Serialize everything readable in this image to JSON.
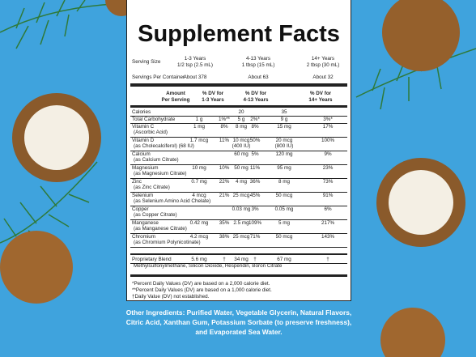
{
  "title": "Supplement Facts",
  "serving": {
    "label": "Serving Size",
    "columns": [
      {
        "age": "1-3 Years",
        "size": "1/2 tsp (2.5 mL)"
      },
      {
        "age": "4-13 Years",
        "size": "1 tbsp (15 mL)"
      },
      {
        "age": "14+ Years",
        "size": "2 tbsp (30 mL)"
      }
    ]
  },
  "servings_per_container": {
    "label": "Servings Per Container",
    "values": [
      "About 378",
      "About 63",
      "About 32"
    ]
  },
  "header": [
    "Amount\nPer Serving",
    "% DV for\n1-3 Years",
    "% DV for\n4-13 Years",
    "% DV for\n14+ Years"
  ],
  "rows": [
    {
      "name": "Calories",
      "cells": [
        null,
        null,
        "20",
        null,
        "35",
        null
      ]
    },
    {
      "name": "Total Carbohydrate",
      "cells": [
        "1 g",
        "1%**",
        "5 g",
        "2%*",
        "9 g",
        "3%*"
      ]
    },
    {
      "name": "Vitamin C",
      "sub": "(Ascorbic Acid)",
      "cells": [
        "1 mg",
        "8%",
        "8 mg",
        "8%",
        "15 mg",
        "17%"
      ]
    },
    {
      "name": "Vitamin D",
      "sub": "(as Cholecalciferol) (68 IU)",
      "cells": [
        "1.7 mcg",
        "11%",
        "10 mcg\n(400 IU)",
        "50%",
        "20 mcg\n(800 IU)",
        "100%"
      ]
    },
    {
      "name": "Calcium",
      "sub": "(as Calcium Citrate)",
      "cells": [
        null,
        null,
        "60 mg",
        "5%",
        "120 mg",
        "9%"
      ]
    },
    {
      "name": "Magnesium",
      "sub": "(as Magnesium Citrate)",
      "cells": [
        "10 mg",
        "10%",
        "50 mg",
        "11%",
        "95 mg",
        "23%"
      ]
    },
    {
      "name": "Zinc",
      "sub": "(as Zinc Citrate)",
      "cells": [
        "0.7 mg",
        "22%",
        "4 mg",
        "36%",
        "8 mg",
        "73%"
      ]
    },
    {
      "name": "Selenium",
      "sub": "(as Selenium Amino Acid Chelate)",
      "cells": [
        "4 mcg",
        "21%",
        "25 mcg",
        "45%",
        "50 mcg",
        "91%"
      ]
    },
    {
      "name": "Copper",
      "sub": "(as Copper Citrate)",
      "cells": [
        null,
        null,
        "0.03 mg",
        "3%",
        "0.05 mg",
        "6%"
      ]
    },
    {
      "name": "Manganese",
      "sub": "(as Manganese Citrate)",
      "cells": [
        "0.42 mg",
        "35%",
        "2.5 mg",
        "109%",
        "5 mg",
        "217%"
      ]
    },
    {
      "name": "Chromium",
      "sub": "(as Chromium Polynicotinate)",
      "cells": [
        "4.2 mcg",
        "38%",
        "25 mcg",
        "71%",
        "50 mcg",
        "143%"
      ]
    }
  ],
  "blend": {
    "name": "Proprietary Blend",
    "cells": [
      "5.6 mg",
      "†",
      "34 mg",
      "†",
      "67 mg",
      "†"
    ],
    "ingredients": "Methylsulfonylmethane, Silicon Dioxide, Hesperidin, Boron Citrate"
  },
  "footnotes": [
    "*Percent Daily Values (DV) are based on a 2,000 calorie diet.",
    "**Percent Daily Values (DV) are based on a 1,000 calorie diet.",
    "†Daily Value (DV) not established."
  ],
  "other_ingredients": "Other Ingredients: Purified Water, Vegetable Glycerin, Natural Flavors, Citric Acid, Xanthan Gum, Potassium Sorbate (to preserve freshness), and Evaporated Sea Water."
}
